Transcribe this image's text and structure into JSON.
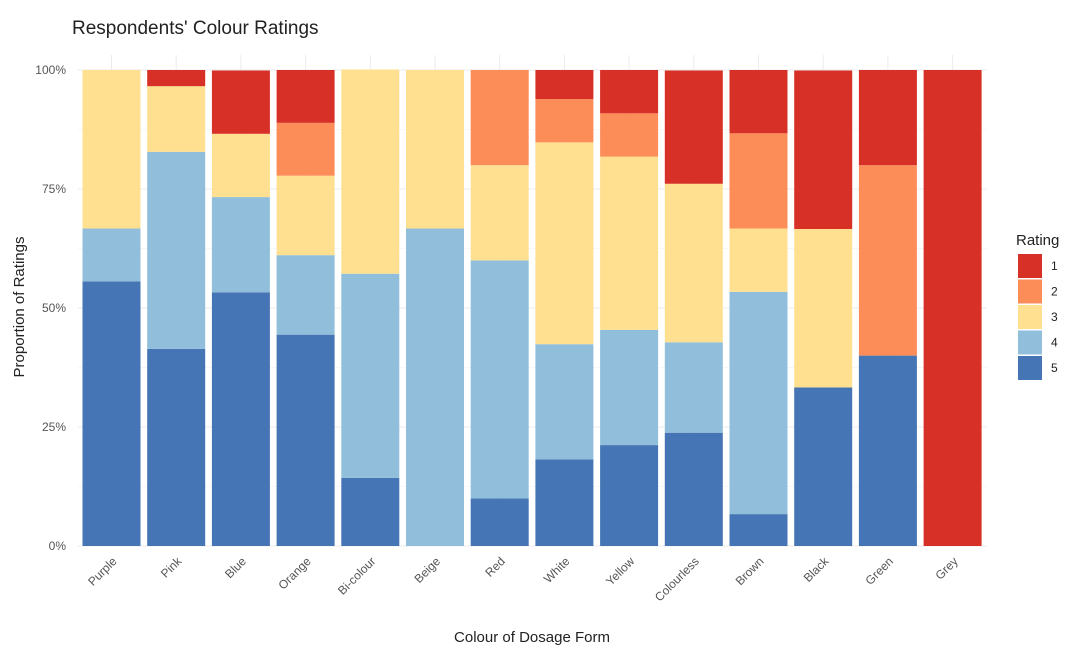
{
  "chart_data": {
    "type": "bar",
    "stacked": "proportion",
    "title": "Respondents' Colour Ratings",
    "xlabel": "Colour of Dosage Form",
    "ylabel": "Proportion of Ratings",
    "ylim": [
      0,
      1
    ],
    "yticks": [
      {
        "value": 0,
        "label": "0%"
      },
      {
        "value": 0.25,
        "label": "25%"
      },
      {
        "value": 0.5,
        "label": "50%"
      },
      {
        "value": 0.75,
        "label": "75%"
      },
      {
        "value": 1,
        "label": "100%"
      }
    ],
    "grid": true,
    "legend": {
      "title": "Rating",
      "position": "right"
    },
    "categories": [
      "Purple",
      "Pink",
      "Blue",
      "Orange",
      "Bi-colour",
      "Beige",
      "Red",
      "White",
      "Yellow",
      "Colourless",
      "Brown",
      "Black",
      "Green",
      "Grey"
    ],
    "series": [
      {
        "name": "1",
        "color": "#d73027",
        "values": [
          0.0,
          0.034,
          0.133,
          0.111,
          0.0,
          0.0,
          0.0,
          0.061,
          0.091,
          0.238,
          0.133,
          0.333,
          0.2,
          1.0
        ]
      },
      {
        "name": "2",
        "color": "#fc8d59",
        "values": [
          0.0,
          0.0,
          0.0,
          0.111,
          0.0,
          0.0,
          0.2,
          0.091,
          0.091,
          0.0,
          0.2,
          0.0,
          0.4,
          0.0
        ]
      },
      {
        "name": "3",
        "color": "#fee090",
        "values": [
          0.333,
          0.138,
          0.133,
          0.167,
          0.429,
          0.333,
          0.2,
          0.424,
          0.364,
          0.333,
          0.133,
          0.333,
          0.0,
          0.0
        ]
      },
      {
        "name": "4",
        "color": "#91bfdb",
        "values": [
          0.111,
          0.414,
          0.2,
          0.167,
          0.429,
          0.667,
          0.5,
          0.242,
          0.242,
          0.19,
          0.467,
          0.0,
          0.0,
          0.0
        ]
      },
      {
        "name": "5",
        "color": "#4575b4",
        "values": [
          0.556,
          0.414,
          0.533,
          0.444,
          0.143,
          0.0,
          0.1,
          0.182,
          0.212,
          0.238,
          0.067,
          0.333,
          0.4,
          0.0
        ]
      }
    ]
  }
}
